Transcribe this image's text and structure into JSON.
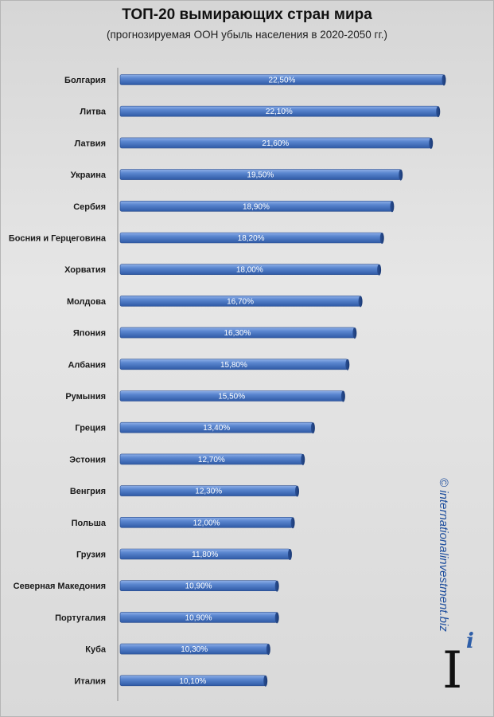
{
  "chart_data": {
    "type": "bar",
    "orientation": "horizontal",
    "title": "ТОП-20 вымирающих стран мира",
    "subtitle": "(прогнозируемая ООН убыль населения в 2020-2050 гг.)",
    "categories": [
      "Болгария",
      "Литва",
      "Латвия",
      "Украина",
      "Сербия",
      "Босния и Герцеговина",
      "Хорватия",
      "Молдова",
      "Япония",
      "Албания",
      "Румыния",
      "Греция",
      "Эстония",
      "Венгрия",
      "Польша",
      "Грузия",
      "Северная Македония",
      "Португалия",
      "Куба",
      "Италия"
    ],
    "values": [
      22.5,
      22.1,
      21.6,
      19.5,
      18.9,
      18.2,
      18.0,
      16.7,
      16.3,
      15.8,
      15.5,
      13.4,
      12.7,
      12.3,
      12.0,
      11.8,
      10.9,
      10.9,
      10.3,
      10.1
    ],
    "value_labels": [
      "22,50%",
      "22,10%",
      "21,60%",
      "19,50%",
      "18,90%",
      "18,20%",
      "18,00%",
      "16,70%",
      "16,30%",
      "15,80%",
      "15,50%",
      "13,40%",
      "12,70%",
      "12,30%",
      "12,00%",
      "11,80%",
      "10,90%",
      "10,90%",
      "10,30%",
      "10,10%"
    ],
    "xlim": [
      0,
      23
    ],
    "grid": false,
    "legend": "none",
    "bar_color": "#4a78c4"
  },
  "watermark": "© internationalinvestment.biz",
  "logo": {
    "big": "I",
    "small": "i"
  }
}
